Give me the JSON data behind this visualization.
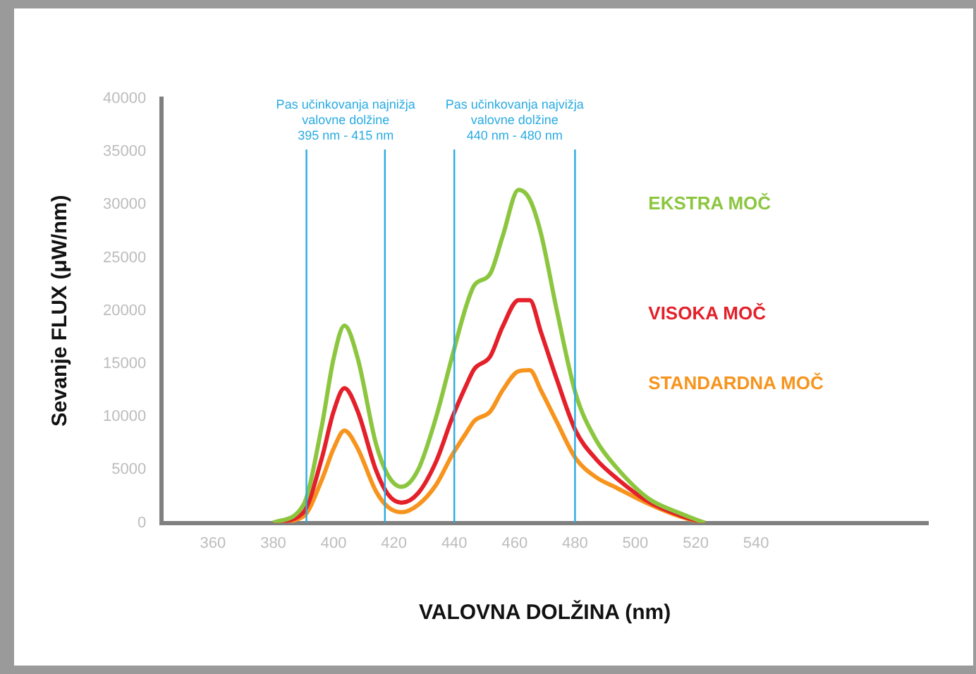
{
  "chart_data": {
    "type": "line",
    "xlabel": "VALOVNA DOLŽINA (nm)",
    "ylabel": "Sevanje FLUX (μW/nm)",
    "x": [
      380,
      390,
      396,
      400,
      403.6,
      408,
      414,
      418,
      422.5,
      428,
      434,
      439.3,
      444,
      446.6,
      451.9,
      456,
      461.3,
      465,
      468.7,
      474,
      480.2,
      487,
      493.8,
      504.3,
      514.8,
      523
    ],
    "series": [
      {
        "name": "EKSTRA MOČ",
        "color": "#8cc63f",
        "values": [
          0,
          1700,
          9000,
          15500,
          18600,
          15500,
          7500,
          4500,
          3400,
          5000,
          10000,
          15700,
          20500,
          22400,
          23500,
          27000,
          31400,
          30500,
          27300,
          20000,
          12200,
          7800,
          5200,
          2300,
          900,
          0
        ]
      },
      {
        "name": "VISOKA MOČ",
        "color": "#e4202a",
        "values": [
          0,
          1000,
          6000,
          10500,
          12700,
          10500,
          5000,
          2700,
          1900,
          2800,
          5800,
          9900,
          13000,
          14500,
          15700,
          18500,
          21000,
          21000,
          18000,
          13500,
          8700,
          6000,
          4200,
          2000,
          700,
          0
        ]
      },
      {
        "name": "STANDARDNA MOČ",
        "color": "#f7941d",
        "values": [
          0,
          600,
          4000,
          7000,
          8700,
          7000,
          3000,
          1500,
          1000,
          1700,
          3600,
          6400,
          8500,
          9600,
          10500,
          12500,
          14300,
          14400,
          12500,
          9500,
          6100,
          4300,
          3300,
          1800,
          600,
          0
        ]
      }
    ],
    "xlim": [
      343,
      597
    ],
    "xticks": [
      360,
      380,
      400,
      420,
      440,
      460,
      480,
      500,
      520,
      540
    ],
    "ylim": [
      0,
      40000
    ],
    "yticks": [
      0,
      5000,
      10000,
      15000,
      20000,
      25000,
      30000,
      35000,
      40000
    ],
    "grid": false,
    "legend": false,
    "marker": "none",
    "line_style": "solid",
    "ref_lines": [
      {
        "axis": "x",
        "value": 391,
        "color": "#29abe2"
      },
      {
        "axis": "x",
        "value": 417,
        "color": "#29abe2"
      },
      {
        "axis": "x",
        "value": 440,
        "color": "#29abe2"
      },
      {
        "axis": "x",
        "value": 480,
        "color": "#29abe2"
      }
    ],
    "annotations": [
      "Pas učinkovanja najnižja\nvalovne dolžine\n395 nm - 415 nm",
      "Pas učinkovanja najvižja\nvalovne dolžine\n440 nm - 480 nm"
    ]
  }
}
